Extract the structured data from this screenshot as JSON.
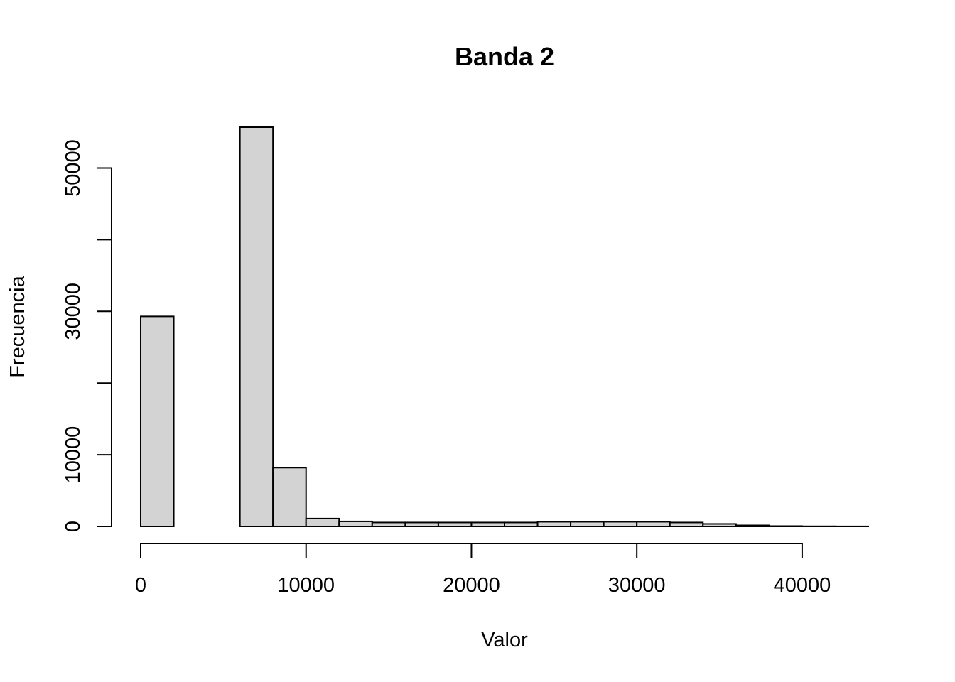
{
  "chart_data": {
    "type": "bar",
    "title": "Banda 2",
    "xlabel": "Valor",
    "ylabel": "Frecuencia",
    "bin_width": 2000,
    "x_start": 0,
    "values": [
      29300,
      0,
      0,
      55700,
      8200,
      1100,
      700,
      550,
      550,
      550,
      550,
      550,
      650,
      650,
      650,
      650,
      550,
      350,
      150,
      50,
      20,
      10
    ],
    "xlim": [
      0,
      44000
    ],
    "ylim": [
      0,
      55700
    ],
    "x_ticks": [
      0,
      10000,
      20000,
      30000,
      40000
    ],
    "x_tick_labels": [
      "0",
      "10000",
      "20000",
      "30000",
      "40000"
    ],
    "y_ticks": [
      0,
      10000,
      20000,
      30000,
      40000,
      50000
    ],
    "y_tick_labels": [
      "0",
      "10000",
      "",
      "30000",
      "",
      "50000"
    ],
    "bar_fill": "#d3d3d3",
    "bar_stroke": "#000000",
    "grid": false,
    "legend": "none"
  }
}
